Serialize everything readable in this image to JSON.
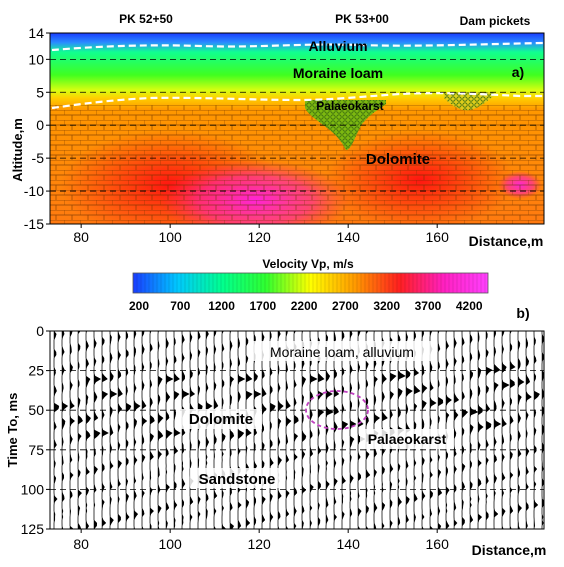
{
  "chart_data": [
    {
      "type": "heatmap",
      "panel_label": "a)",
      "top_labels": [
        "PK 52+50",
        "PK 53+00",
        "Dam pickets"
      ],
      "xlabel": "Distance,m",
      "ylabel": "Altitude,m",
      "xlim": [
        73,
        184
      ],
      "ylim": [
        -15,
        14
      ],
      "x_ticks": [
        80,
        100,
        120,
        140,
        160
      ],
      "y_ticks": [
        14,
        10,
        5,
        0,
        -5,
        -10,
        -15
      ],
      "grid": "dashed horizontal",
      "layers": [
        {
          "name": "Alluvium",
          "altitude_range": [
            11,
            14
          ],
          "velocity_ms": 300
        },
        {
          "name": "Moraine loam",
          "altitude_range": [
            3,
            11
          ],
          "velocity_ms": 1500
        },
        {
          "name": "Dolomite",
          "altitude_range": [
            -15,
            3
          ],
          "velocity_ms": 3200
        }
      ],
      "anomalies": [
        {
          "name": "Palaeokarst",
          "x_range": [
            133,
            145
          ],
          "altitude_range": [
            -3,
            4
          ]
        },
        {
          "x_range": [
            158,
            170
          ],
          "altitude_range": [
            2,
            5
          ]
        }
      ],
      "annotations": [
        "Alluvium",
        "Moraine loam",
        "Palaeokarst",
        "Dolomite"
      ]
    },
    {
      "type": "colorbar",
      "title": "Velocity Vp, m/s",
      "ticks": [
        200,
        700,
        1200,
        1700,
        2200,
        2700,
        3200,
        3700,
        4200
      ],
      "range": [
        200,
        4500
      ],
      "colors": [
        "#1a3cff",
        "#00c8ff",
        "#00ff90",
        "#30ff30",
        "#ffff00",
        "#ff9a00",
        "#ff2020",
        "#ff20c0",
        "#ff40ff"
      ]
    },
    {
      "type": "other",
      "panel_label": "b)",
      "xlabel": "Distance,m",
      "ylabel": "Time To, ms",
      "xlim": [
        73,
        184
      ],
      "ylim": [
        0,
        125
      ],
      "x_ticks": [
        80,
        100,
        120,
        140,
        160
      ],
      "y_ticks": [
        0,
        25,
        50,
        75,
        100,
        125
      ],
      "grid": "dashed horizontal",
      "reflectors_ms": [
        30,
        40,
        48,
        56,
        65
      ],
      "annotations": [
        "Moraine loam, alluvium",
        "Dolomite",
        "Palaeokarst",
        "Sandstone"
      ]
    }
  ],
  "colors": {
    "dashed_boundary": "#ffffff",
    "karst_outline": "#c040c0",
    "brick_lines": "#7a3a00"
  }
}
